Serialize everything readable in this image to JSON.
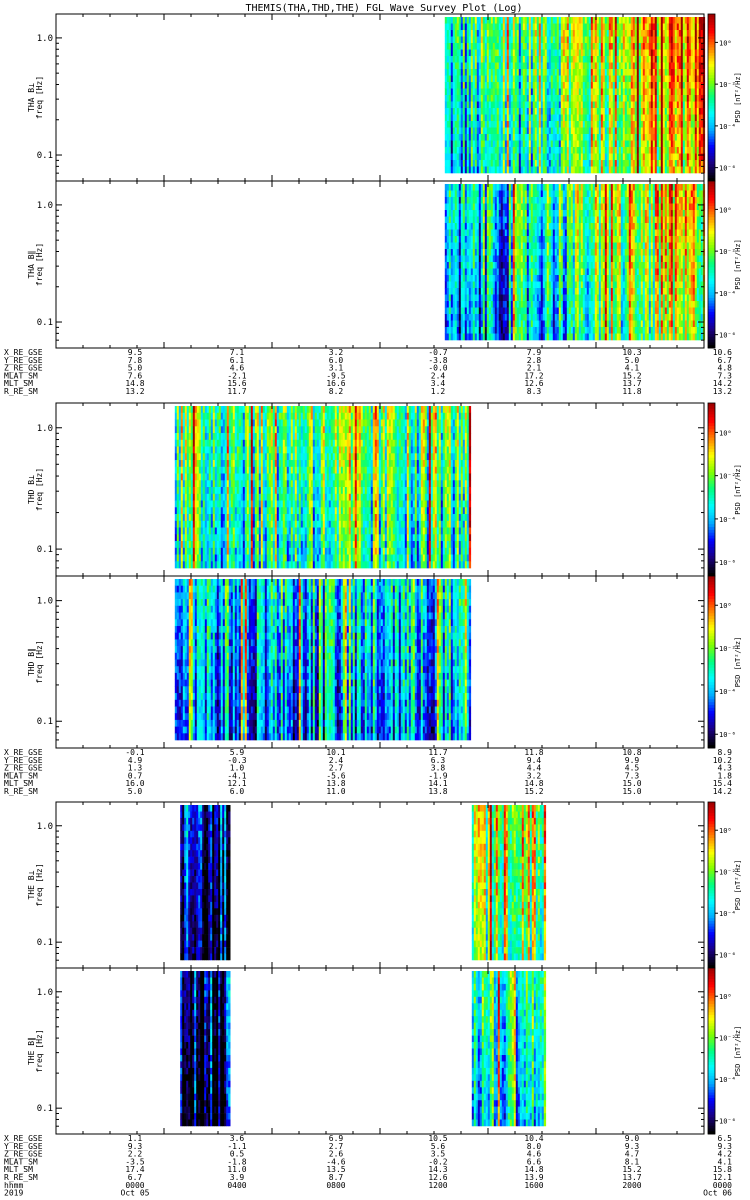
{
  "title": "THEMIS(THA,THD,THE) FGL Wave Survey Plot (Log)",
  "chart_data": {
    "type": "heatmap",
    "x_range_hours": [
      0,
      24
    ],
    "freq_range_hz": [
      0.06,
      1.6
    ],
    "freq_scale": "log",
    "freq_ticks": [
      "0.1",
      "1.0"
    ],
    "psd_ticks": [
      "10⁰",
      "10⁻²",
      "10⁻⁴",
      "10⁻⁶"
    ],
    "colorbar_label": "PSD [nT²/Hz]",
    "colormap": [
      "#000000",
      "#1a0080",
      "#0000ff",
      "#00aaff",
      "#00ffff",
      "#00ff80",
      "#80ff00",
      "#ffff00",
      "#ff8000",
      "#ff0000",
      "#a00000"
    ],
    "panels": [
      {
        "label": "THA B⊥",
        "ylabel": "freq [Hz]",
        "segments": [
          {
            "start": 14.4,
            "end": 24.0,
            "level": 0.55,
            "trend": 0.45
          }
        ]
      },
      {
        "label": "THA B∥",
        "ylabel": "freq [Hz]",
        "segments": [
          {
            "start": 14.4,
            "end": 24.0,
            "level": 0.45,
            "trend": 0.4
          }
        ]
      },
      {
        "label": "THD B⊥",
        "ylabel": "freq [Hz]",
        "segments": [
          {
            "start": 4.4,
            "end": 15.3,
            "level": 0.55,
            "trend": 0.0
          }
        ]
      },
      {
        "label": "THD B∥",
        "ylabel": "freq [Hz]",
        "segments": [
          {
            "start": 4.4,
            "end": 15.3,
            "level": 0.4,
            "trend": 0.0
          }
        ]
      },
      {
        "label": "THE B⊥",
        "ylabel": "freq [Hz]",
        "segments": [
          {
            "start": 4.6,
            "end": 6.4,
            "level": 0.2,
            "trend": 0.0
          },
          {
            "start": 15.4,
            "end": 18.1,
            "level": 0.65,
            "trend": 0.0
          }
        ]
      },
      {
        "label": "THE B∥",
        "ylabel": "freq [Hz]",
        "segments": [
          {
            "start": 4.6,
            "end": 6.4,
            "level": 0.15,
            "trend": 0.0
          },
          {
            "start": 15.4,
            "end": 18.1,
            "level": 0.5,
            "trend": 0.0
          }
        ]
      }
    ],
    "ephemeris": [
      {
        "rows": [
          {
            "name": "X_RE_GSE",
            "values": [
              "9.5",
              "7.1",
              "3.2",
              "-0.7",
              "7.9",
              "10.3",
              "10.6"
            ]
          },
          {
            "name": "Y_RE_GSE",
            "values": [
              "7.8",
              "6.1",
              "6.0",
              "-3.8",
              "2.8",
              "5.0",
              "6.7"
            ]
          },
          {
            "name": "Z_RE_GSE",
            "values": [
              "5.0",
              "4.6",
              "3.1",
              "-0.0",
              "2.1",
              "4.1",
              "4.8"
            ]
          },
          {
            "name": "MLAT_SM",
            "values": [
              "7.6",
              "-2.1",
              "-9.5",
              "2.4",
              "17.2",
              "15.2",
              "7.3"
            ]
          },
          {
            "name": "MLT_SM",
            "values": [
              "14.8",
              "15.6",
              "16.6",
              "3.4",
              "12.6",
              "13.7",
              "14.2"
            ]
          },
          {
            "name": "R_RE_SM",
            "values": [
              "13.2",
              "11.7",
              "8.2",
              "1.2",
              "8.3",
              "11.8",
              "13.2"
            ]
          }
        ]
      },
      {
        "rows": [
          {
            "name": "X_RE_GSE",
            "values": [
              "-0.1",
              "5.9",
              "10.1",
              "11.7",
              "11.8",
              "10.8",
              "8.9"
            ]
          },
          {
            "name": "Y_RE_GSE",
            "values": [
              "4.9",
              "-0.3",
              "2.4",
              "6.3",
              "9.4",
              "9.9",
              "10.2"
            ]
          },
          {
            "name": "Z_RE_GSE",
            "values": [
              "1.3",
              "1.0",
              "2.7",
              "3.8",
              "4.4",
              "4.5",
              "4.3"
            ]
          },
          {
            "name": "MLAT_SM",
            "values": [
              "0.7",
              "-4.1",
              "-5.6",
              "-1.9",
              "3.2",
              "7.3",
              "1.8"
            ]
          },
          {
            "name": "MLT_SM",
            "values": [
              "16.0",
              "12.1",
              "13.8",
              "14.1",
              "14.8",
              "15.0",
              "15.4"
            ]
          },
          {
            "name": "R_RE_SM",
            "values": [
              "5.0",
              "6.0",
              "11.0",
              "13.8",
              "15.2",
              "15.0",
              "14.2"
            ]
          }
        ]
      },
      {
        "rows": [
          {
            "name": "X_RE_GSE",
            "values": [
              "1.1",
              "3.6",
              "6.9",
              "10.5",
              "10.4",
              "9.0",
              "6.5"
            ]
          },
          {
            "name": "Y_RE_GSE",
            "values": [
              "9.3",
              "-1.1",
              "2.7",
              "5.6",
              "8.0",
              "9.3",
              "9.3"
            ]
          },
          {
            "name": "Z_RE_GSE",
            "values": [
              "2.2",
              "0.5",
              "2.6",
              "3.5",
              "4.6",
              "4.7",
              "4.2"
            ]
          },
          {
            "name": "MLAT_SM",
            "values": [
              "-3.5",
              "-1.8",
              "-4.6",
              "-0.2",
              "6.6",
              "8.1",
              "4.1"
            ]
          },
          {
            "name": "MLT_SM",
            "values": [
              "17.4",
              "11.0",
              "13.5",
              "14.3",
              "14.8",
              "15.2",
              "15.8"
            ]
          },
          {
            "name": "R_RE_SM",
            "values": [
              "6.7",
              "3.9",
              "8.7",
              "12.6",
              "13.9",
              "13.7",
              "12.1"
            ]
          }
        ],
        "time_rows": [
          {
            "name": "hhmm",
            "values": [
              "0000",
              "0400",
              "0800",
              "1200",
              "1600",
              "2000",
              "0000"
            ]
          },
          {
            "name": "2019",
            "values": [
              "Oct 05",
              "",
              "",
              "",
              "",
              "",
              "Oct 06"
            ]
          }
        ]
      }
    ]
  }
}
